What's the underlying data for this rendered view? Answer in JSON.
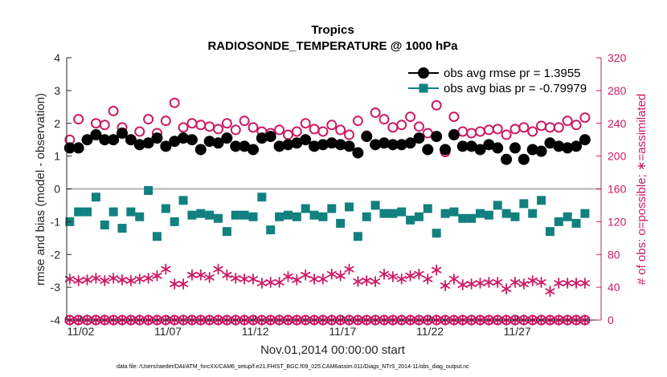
{
  "chart_data": {
    "type": "scatter",
    "title": "Tropics",
    "subtitle": "RADIOSONDE_TEMPERATURE @ 1000 hPa",
    "xlabel": "Nov.01,2014 00:00:00 start",
    "ylabel": "rmse and bias (model - observation)",
    "ylabel_right": "# of obs: o=possible; ∗=assimilated",
    "footnote": "data file: /Users/raeder/DAI/ATM_forcXX/CAM6_setup/f.e21.FHIST_BGC.f09_025.CAM6assim.011/Diags_NTrS_2014-11/obs_diag_output.nc",
    "xlim": [
      1.2,
      31.8
    ],
    "ylim": [
      -4,
      4
    ],
    "ylim_right": [
      0,
      320
    ],
    "x_ticks": [
      2,
      7,
      12,
      17,
      22,
      27
    ],
    "x_tick_labels": [
      "11/02",
      "11/07",
      "11/12",
      "11/17",
      "11/22",
      "11/27"
    ],
    "y_ticks": [
      -4,
      -3,
      -2,
      -1,
      0,
      1,
      2,
      3,
      4
    ],
    "y_tick_labels": [
      "-4",
      "-3",
      "-2",
      "-1",
      "0",
      "1",
      "2",
      "3",
      "4"
    ],
    "y_ticks_right": [
      0,
      40,
      80,
      120,
      160,
      200,
      240,
      280,
      320
    ],
    "y_tick_labels_right": [
      "0",
      "40",
      "80",
      "120",
      "160",
      "200",
      "240",
      "280",
      "320"
    ],
    "legend": [
      {
        "label": "obs avg rmse pr = 1.3955",
        "series": "rmse"
      },
      {
        "label": "obs avg bias pr = -0.79979",
        "series": "bias"
      }
    ],
    "legend_position": "top-right",
    "x": [
      1.375,
      1.875,
      2.375,
      2.875,
      3.375,
      3.875,
      4.375,
      4.875,
      5.375,
      5.875,
      6.375,
      6.875,
      7.375,
      7.875,
      8.375,
      8.875,
      9.375,
      9.875,
      10.375,
      10.875,
      11.375,
      11.875,
      12.375,
      12.875,
      13.375,
      13.875,
      14.375,
      14.875,
      15.375,
      15.875,
      16.375,
      16.875,
      17.375,
      17.875,
      18.375,
      18.875,
      19.375,
      19.875,
      20.375,
      20.875,
      21.375,
      21.875,
      22.375,
      22.875,
      23.375,
      23.875,
      24.375,
      24.875,
      25.375,
      25.875,
      26.375,
      26.875,
      27.375,
      27.875,
      28.375,
      28.875,
      29.375,
      29.875,
      30.375,
      30.875
    ],
    "series": [
      {
        "name": "rmse",
        "axis": "left",
        "color": "#000000",
        "marker": "filled-circle",
        "connected": false,
        "values": [
          1.25,
          1.25,
          1.5,
          1.65,
          1.5,
          1.5,
          1.7,
          1.5,
          1.35,
          1.4,
          1.55,
          1.3,
          1.45,
          1.55,
          1.5,
          1.2,
          1.45,
          1.4,
          1.55,
          1.3,
          1.3,
          1.2,
          1.55,
          1.6,
          1.3,
          1.35,
          1.4,
          1.5,
          1.3,
          1.35,
          1.4,
          1.35,
          1.3,
          1.1,
          1.6,
          1.35,
          1.4,
          1.35,
          1.35,
          1.4,
          1.55,
          1.2,
          1.6,
          1.2,
          1.65,
          1.3,
          1.3,
          1.2,
          1.35,
          1.25,
          0.9,
          1.25,
          0.9,
          1.2,
          1.15,
          1.4,
          1.3,
          1.25,
          1.3,
          1.5
        ]
      },
      {
        "name": "bias",
        "axis": "left",
        "color": "#138080",
        "marker": "filled-square",
        "connected": false,
        "values": [
          -1.0,
          -0.7,
          -0.7,
          -0.25,
          -1.1,
          -0.7,
          -1.2,
          -0.7,
          -0.85,
          -0.05,
          -1.45,
          -0.6,
          -1.0,
          -0.35,
          -0.8,
          -0.75,
          -0.8,
          -0.9,
          -1.3,
          -0.8,
          -0.8,
          -0.85,
          -0.25,
          -1.25,
          -0.85,
          -0.8,
          -0.85,
          -0.6,
          -0.8,
          -0.85,
          -0.6,
          -1.05,
          -0.55,
          -1.45,
          -0.85,
          -0.5,
          -0.75,
          -0.75,
          -0.7,
          -0.95,
          -0.85,
          -0.6,
          -1.35,
          -0.75,
          -0.7,
          -0.9,
          -0.9,
          -0.75,
          -0.8,
          -0.5,
          -0.75,
          -0.85,
          -0.45,
          -0.75,
          -0.35,
          -1.3,
          -1.0,
          -0.85,
          -1.05,
          -0.75
        ]
      },
      {
        "name": "possible",
        "axis": "right",
        "color": "#cc1a66",
        "marker": "open-circle",
        "connected": false,
        "values": [
          220,
          245,
          220,
          240,
          238,
          255,
          235,
          220,
          230,
          245,
          228,
          243,
          265,
          235,
          240,
          238,
          236,
          233,
          240,
          232,
          243,
          235,
          230,
          228,
          232,
          226,
          230,
          240,
          233,
          230,
          238,
          232,
          226,
          243,
          225,
          253,
          245,
          235,
          238,
          248,
          236,
          228,
          262,
          205,
          248,
          230,
          228,
          230,
          232,
          233,
          226,
          233,
          235,
          230,
          237,
          235,
          235,
          243,
          238,
          247
        ]
      },
      {
        "name": "assimilated",
        "axis": "right",
        "color": "#cc1a66",
        "marker": "asterisk",
        "connected": false,
        "values": [
          50,
          48,
          49,
          51,
          48,
          51,
          49,
          48,
          50,
          51,
          54,
          62,
          44,
          44,
          55,
          55,
          52,
          62,
          55,
          51,
          50,
          50,
          45,
          46,
          46,
          53,
          49,
          55,
          50,
          50,
          56,
          54,
          62,
          47,
          48,
          47,
          56,
          53,
          50,
          54,
          56,
          50,
          61,
          42,
          50,
          43,
          44,
          45,
          46,
          46,
          38,
          46,
          44,
          48,
          46,
          35,
          45,
          45,
          45,
          45
        ]
      },
      {
        "name": "possible-zero",
        "axis": "right",
        "color": "#cc1a66",
        "marker": "open-circle",
        "connected": false,
        "values": [
          0,
          0,
          0,
          0,
          0,
          0,
          0,
          0,
          0,
          0,
          0,
          0,
          0,
          0,
          0,
          0,
          0,
          0,
          0,
          0,
          0,
          0,
          0,
          0,
          0,
          0,
          0,
          0,
          0,
          0,
          0,
          0,
          0,
          0,
          0,
          0,
          0,
          0,
          0,
          0,
          0,
          0,
          0,
          0,
          0,
          0,
          0,
          0,
          0,
          0,
          0,
          0,
          0,
          0,
          0,
          0,
          0,
          0,
          0,
          0
        ]
      },
      {
        "name": "assimilated-zero",
        "axis": "right",
        "color": "#cc1a66",
        "marker": "asterisk",
        "connected": false,
        "values": [
          0,
          0,
          0,
          0,
          0,
          0,
          0,
          0,
          0,
          0,
          0,
          0,
          0,
          0,
          0,
          0,
          0,
          0,
          0,
          0,
          0,
          0,
          0,
          0,
          0,
          0,
          0,
          0,
          0,
          0,
          0,
          0,
          0,
          0,
          0,
          0,
          0,
          0,
          0,
          0,
          0,
          0,
          0,
          0,
          0,
          0,
          0,
          0,
          0,
          0,
          0,
          0,
          0,
          0,
          0,
          0,
          0,
          0,
          0,
          0
        ]
      }
    ],
    "zero_line": true,
    "zero_line_color": "#b3b3b3",
    "grid": false
  }
}
